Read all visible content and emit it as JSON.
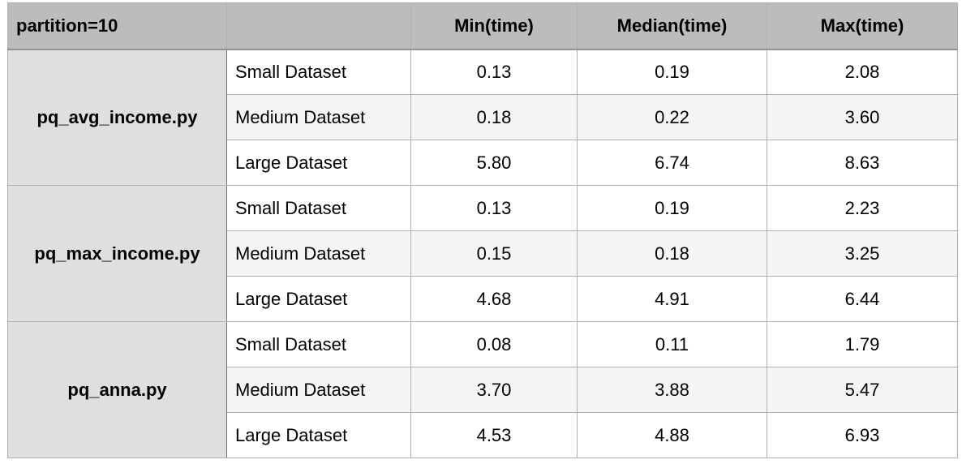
{
  "header": {
    "corner": "partition=10",
    "blank": "",
    "min": "Min(time)",
    "median": "Median(time)",
    "max": "Max(time)"
  },
  "groups": [
    {
      "script": "pq_avg_income.py",
      "rows": [
        {
          "dataset": "Small Dataset",
          "min": "0.13",
          "median": "0.19",
          "max": "2.08"
        },
        {
          "dataset": "Medium Dataset",
          "min": "0.18",
          "median": "0.22",
          "max": "3.60"
        },
        {
          "dataset": "Large Dataset",
          "min": "5.80",
          "median": "6.74",
          "max": "8.63"
        }
      ]
    },
    {
      "script": "pq_max_income.py",
      "rows": [
        {
          "dataset": "Small Dataset",
          "min": "0.13",
          "median": "0.19",
          "max": "2.23"
        },
        {
          "dataset": "Medium Dataset",
          "min": "0.15",
          "median": "0.18",
          "max": "3.25"
        },
        {
          "dataset": "Large Dataset",
          "min": "4.68",
          "median": "4.91",
          "max": "6.44"
        }
      ]
    },
    {
      "script": "pq_anna.py",
      "rows": [
        {
          "dataset": "Small Dataset",
          "min": "0.08",
          "median": "0.11",
          "max": "1.79"
        },
        {
          "dataset": "Medium Dataset",
          "min": "3.70",
          "median": "3.88",
          "max": "5.47"
        },
        {
          "dataset": "Large Dataset",
          "min": "4.53",
          "median": "4.88",
          "max": "6.93"
        }
      ]
    }
  ],
  "colors": {
    "header_bg": "#bbbdbd",
    "group_bg": "#dfdfdf",
    "stripe_bg": "#f5f5f5",
    "border": "#aeb2b2"
  }
}
